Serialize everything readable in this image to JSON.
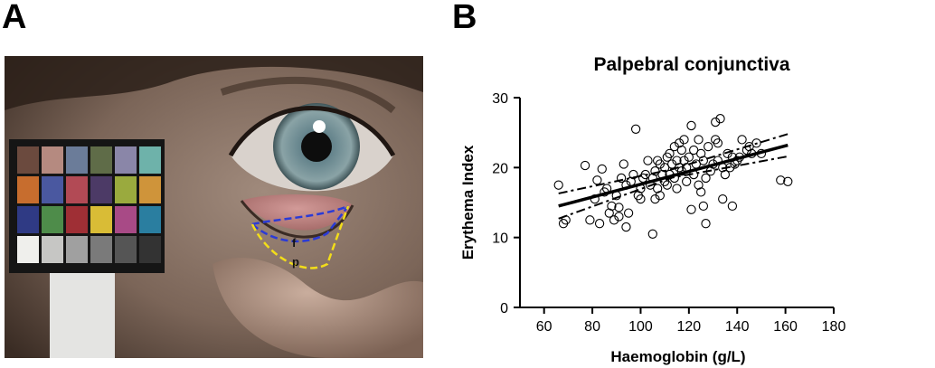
{
  "panels": {
    "a_label": "A",
    "b_label": "B"
  },
  "photo": {
    "region_labels": {
      "fornix": "f",
      "palpebral": "p"
    },
    "colors": {
      "fornix_outline": "#2b3bd6",
      "palpebral_outline": "#f2dd1a"
    },
    "color_chart_rows": [
      [
        "#6b4a3e",
        "#b58a80",
        "#6b7c99",
        "#5f6c48",
        "#8a86a8",
        "#6eb2aa"
      ],
      [
        "#c76d2e",
        "#4a58a0",
        "#b24a55",
        "#4c3a66",
        "#9aaa3e",
        "#cf943a"
      ],
      [
        "#2f3a84",
        "#4e8c4a",
        "#9f2f35",
        "#d9bc36",
        "#a84a86",
        "#2a7ea0"
      ],
      [
        "#efefec",
        "#c6c6c4",
        "#a0a0a0",
        "#7a7a7a",
        "#555555",
        "#333333"
      ]
    ]
  },
  "chart_data": {
    "type": "scatter",
    "title": "Palpebral conjunctiva",
    "xlabel": "Haemoglobin (g/L)",
    "ylabel": "Erythema Index",
    "xlim": [
      50,
      180
    ],
    "ylim": [
      0,
      30
    ],
    "xticks": [
      60,
      80,
      100,
      120,
      140,
      160,
      180
    ],
    "yticks": [
      0,
      10,
      20,
      30
    ],
    "grid": false,
    "points": [
      [
        66,
        17.5
      ],
      [
        68,
        12
      ],
      [
        69,
        12.5
      ],
      [
        77,
        20.3
      ],
      [
        79,
        12.5
      ],
      [
        81,
        15.5
      ],
      [
        82,
        18.2
      ],
      [
        83,
        12
      ],
      [
        84,
        19.8
      ],
      [
        85,
        16.5
      ],
      [
        86,
        17
      ],
      [
        87,
        13.5
      ],
      [
        88,
        14.5
      ],
      [
        89,
        12.5
      ],
      [
        90,
        16
      ],
      [
        91,
        13
      ],
      [
        91,
        14.3
      ],
      [
        92,
        18.5
      ],
      [
        93,
        20.5
      ],
      [
        94,
        11.5
      ],
      [
        94,
        17.5
      ],
      [
        95,
        13.5
      ],
      [
        96,
        18
      ],
      [
        97,
        19
      ],
      [
        98,
        25.5
      ],
      [
        99,
        16
      ],
      [
        100,
        15.5
      ],
      [
        100,
        17
      ],
      [
        101,
        18.5
      ],
      [
        102,
        19
      ],
      [
        103,
        21
      ],
      [
        104,
        17.5
      ],
      [
        105,
        10.5
      ],
      [
        105,
        18.5
      ],
      [
        106,
        19.5
      ],
      [
        106,
        15.5
      ],
      [
        107,
        17
      ],
      [
        107,
        21
      ],
      [
        108,
        16
      ],
      [
        108,
        20.5
      ],
      [
        109,
        19
      ],
      [
        110,
        18
      ],
      [
        110,
        20
      ],
      [
        111,
        21.5
      ],
      [
        111,
        17.5
      ],
      [
        112,
        19
      ],
      [
        112,
        22
      ],
      [
        113,
        20.5
      ],
      [
        114,
        18.5
      ],
      [
        114,
        23
      ],
      [
        115,
        17
      ],
      [
        115,
        21
      ],
      [
        116,
        20
      ],
      [
        116,
        23.5
      ],
      [
        117,
        19.5
      ],
      [
        117,
        22.5
      ],
      [
        118,
        21
      ],
      [
        118,
        24
      ],
      [
        119,
        18
      ],
      [
        119,
        20
      ],
      [
        120,
        21.5
      ],
      [
        121,
        26
      ],
      [
        121,
        14
      ],
      [
        122,
        19
      ],
      [
        122,
        22.5
      ],
      [
        123,
        20.5
      ],
      [
        124,
        24
      ],
      [
        124,
        17.5
      ],
      [
        125,
        16.5
      ],
      [
        125,
        22
      ],
      [
        126,
        21
      ],
      [
        126,
        14.5
      ],
      [
        127,
        12
      ],
      [
        127,
        18.5
      ],
      [
        128,
        23
      ],
      [
        129,
        19.5
      ],
      [
        130,
        20.5
      ],
      [
        131,
        24
      ],
      [
        131,
        26.5
      ],
      [
        132,
        21
      ],
      [
        132,
        23.5
      ],
      [
        133,
        27
      ],
      [
        134,
        15.5
      ],
      [
        134,
        20
      ],
      [
        135,
        19
      ],
      [
        136,
        22
      ],
      [
        137,
        20
      ],
      [
        138,
        14.5
      ],
      [
        138,
        21.5
      ],
      [
        139,
        20.5
      ],
      [
        140,
        21
      ],
      [
        141,
        21.5
      ],
      [
        142,
        24
      ],
      [
        144,
        22.5
      ],
      [
        145,
        23
      ],
      [
        146,
        22
      ],
      [
        148,
        23.5
      ],
      [
        150,
        22
      ],
      [
        158,
        18.2
      ],
      [
        161,
        18
      ]
    ],
    "fit": {
      "x": [
        66,
        161
      ],
      "y": [
        14.5,
        23.2
      ]
    },
    "ci_upper": {
      "x": [
        66,
        113,
        161
      ],
      "y": [
        16.3,
        19.75,
        24.8
      ]
    },
    "ci_lower": {
      "x": [
        66,
        113,
        161
      ],
      "y": [
        12.7,
        18.55,
        21.6
      ]
    },
    "colors": {
      "marker_edge": "#000000",
      "fit_line": "#000000"
    }
  }
}
